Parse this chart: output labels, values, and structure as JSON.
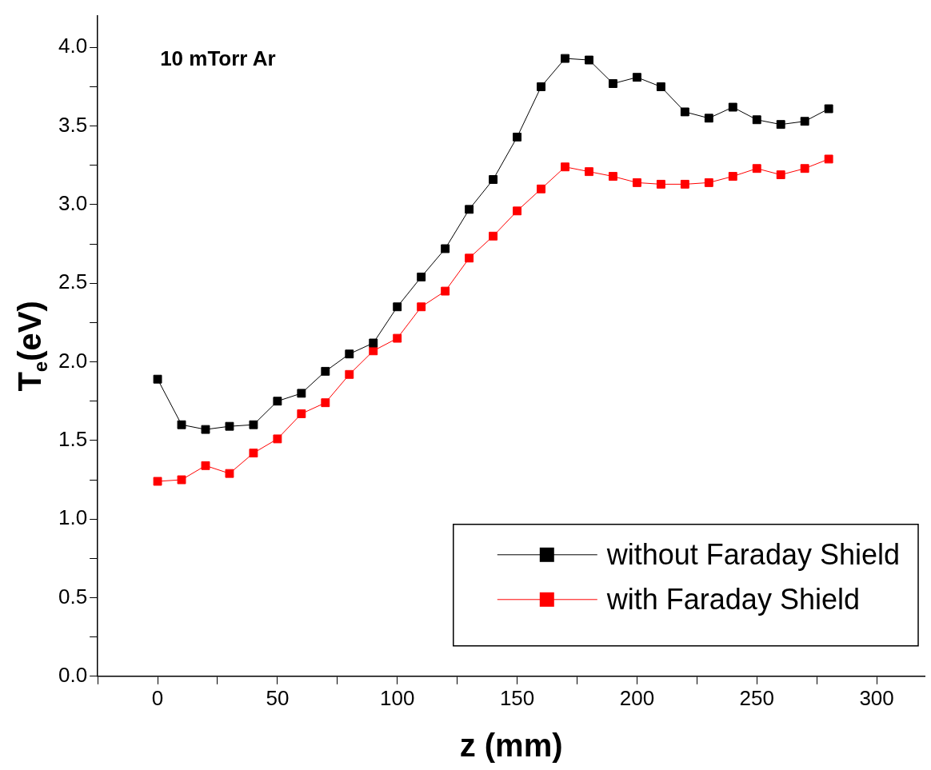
{
  "chart_data": {
    "type": "line",
    "xlabel": "z (mm)",
    "ylabel": "T$_{e}$(eV)",
    "annotations": [
      "10 mTorr Ar"
    ],
    "x": [
      0,
      10,
      20,
      30,
      40,
      50,
      60,
      70,
      80,
      90,
      100,
      110,
      120,
      130,
      140,
      150,
      160,
      170,
      180,
      190,
      200,
      210,
      220,
      230,
      240,
      250,
      260,
      270,
      280
    ],
    "series": [
      {
        "name": "without Faraday Shield",
        "color": "#000000",
        "values": [
          1.89,
          1.6,
          1.57,
          1.59,
          1.6,
          1.75,
          1.8,
          1.94,
          2.05,
          2.12,
          2.35,
          2.54,
          2.72,
          2.97,
          3.16,
          3.43,
          3.75,
          3.93,
          3.92,
          3.77,
          3.81,
          3.75,
          3.59,
          3.55,
          3.62,
          3.54,
          3.51,
          3.53,
          3.61
        ]
      },
      {
        "name": "with Faraday Shield",
        "color": "#ff0000",
        "values": [
          1.24,
          1.25,
          1.34,
          1.29,
          1.42,
          1.51,
          1.67,
          1.74,
          1.92,
          2.07,
          2.15,
          2.35,
          2.45,
          2.66,
          2.8,
          2.96,
          3.1,
          3.24,
          3.21,
          3.18,
          3.14,
          3.13,
          3.13,
          3.14,
          3.18,
          3.23,
          3.19,
          3.23,
          3.29
        ]
      }
    ],
    "xlim": [
      -25,
      320
    ],
    "ylim": [
      0,
      4.2
    ],
    "xticks": [
      {
        "value": -25,
        "label": null
      },
      0,
      {
        "value": 25,
        "label": null
      },
      50,
      {
        "value": 75,
        "label": null
      },
      100,
      {
        "value": 125,
        "label": null
      },
      150,
      {
        "value": 175,
        "label": null
      },
      200,
      {
        "value": 225,
        "label": null
      },
      250,
      {
        "value": 275,
        "label": null
      },
      300
    ],
    "yticks": [
      {
        "value": 0,
        "label": "0.0"
      },
      {
        "value": 0.25,
        "label": null
      },
      {
        "value": 0.5,
        "label": "0.5"
      },
      {
        "value": 0.75,
        "label": null
      },
      {
        "value": 1,
        "label": "1.0"
      },
      {
        "value": 1.25,
        "label": null
      },
      {
        "value": 1.5,
        "label": "1.5"
      },
      {
        "value": 1.75,
        "label": null
      },
      {
        "value": 2,
        "label": "2.0"
      },
      {
        "value": 2.25,
        "label": null
      },
      {
        "value": 2.5,
        "label": "2.5"
      },
      {
        "value": 2.75,
        "label": null
      },
      {
        "value": 3,
        "label": "3.0"
      },
      {
        "value": 3.25,
        "label": null
      },
      {
        "value": 3.5,
        "label": "3.5"
      },
      {
        "value": 3.75,
        "label": null
      },
      {
        "value": 4,
        "label": "4.0"
      }
    ],
    "grid": false,
    "legend": "bottom right",
    "marker": "square",
    "line_style": "solid"
  }
}
